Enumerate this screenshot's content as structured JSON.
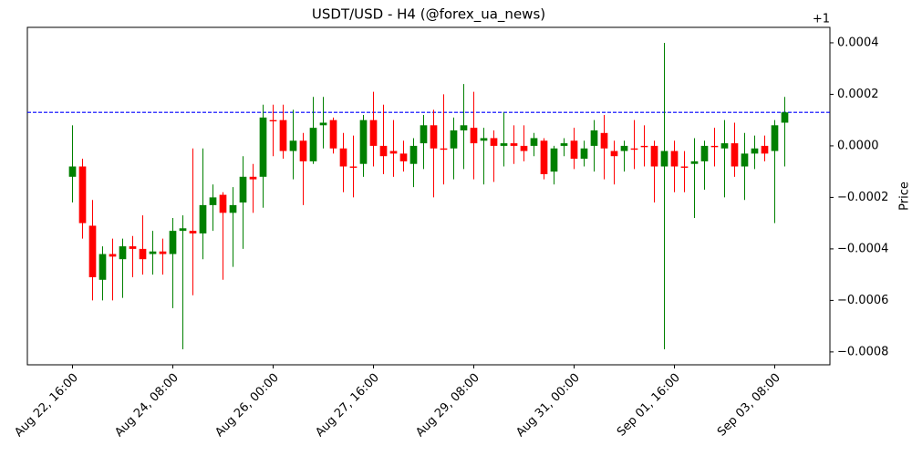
{
  "chart_data": {
    "type": "candlestick",
    "title": "USDT/USD - H4 (@forex_ua_news)",
    "y_label": "Price",
    "y_offset_label": "+1",
    "categories": [
      "Aug 22, 16:00",
      null,
      null,
      null,
      null,
      null,
      null,
      null,
      null,
      null,
      "Aug 24, 08:00",
      null,
      null,
      null,
      null,
      null,
      null,
      null,
      null,
      null,
      "Aug 26, 00:00",
      null,
      null,
      null,
      null,
      null,
      null,
      null,
      null,
      null,
      "Aug 27, 16:00",
      null,
      null,
      null,
      null,
      null,
      null,
      null,
      null,
      null,
      "Aug 29, 08:00",
      null,
      null,
      null,
      null,
      null,
      null,
      null,
      null,
      null,
      "Aug 31, 00:00",
      null,
      null,
      null,
      null,
      null,
      null,
      null,
      null,
      null,
      "Sep 01, 16:00",
      null,
      null,
      null,
      null,
      null,
      null,
      null,
      null,
      null,
      "Sep 03, 08:00",
      null
    ],
    "open": [
      -0.00012,
      -8e-05,
      -0.00031,
      -0.00052,
      -0.00042,
      -0.00044,
      -0.00039,
      -0.0004,
      -0.00042,
      -0.00041,
      -0.00042,
      -0.00033,
      -0.00033,
      -0.00034,
      -0.00023,
      -0.00019,
      -0.00026,
      -0.00022,
      -0.00012,
      -0.00012,
      0.0001,
      0.0001,
      -2e-05,
      2e-05,
      -6e-05,
      8e-05,
      0.0001,
      -1e-05,
      -8e-05,
      -7e-05,
      0.0001,
      0,
      -2e-05,
      -3e-05,
      -7e-05,
      1e-05,
      8e-05,
      -1e-05,
      -1e-05,
      6e-05,
      7e-05,
      2e-05,
      3e-05,
      0,
      1e-05,
      0,
      0,
      2e-05,
      -0.0001,
      0,
      2e-05,
      -5e-05,
      0,
      5e-05,
      -2e-05,
      -2e-05,
      -1e-05,
      0,
      0,
      -8e-05,
      -2e-05,
      -8e-05,
      -7e-05,
      -6e-05,
      0,
      -1e-05,
      1e-05,
      -8e-05,
      -3e-05,
      0,
      -2e-05,
      9e-05
    ],
    "high": [
      8e-05,
      -5e-05,
      -0.00021,
      -0.00039,
      -0.00036,
      -0.00036,
      -0.00035,
      -0.00027,
      -0.00033,
      -0.00036,
      -0.00028,
      -0.00027,
      -1e-05,
      -1e-05,
      -0.00015,
      -0.00018,
      -0.00016,
      -4e-05,
      -7e-05,
      0.00016,
      0.00016,
      0.00016,
      0.00014,
      5e-05,
      0.00019,
      0.00019,
      0.00011,
      5e-05,
      4e-05,
      0.00012,
      0.00021,
      0.00016,
      0.0001,
      2e-05,
      3e-05,
      0.00012,
      0.00014,
      0.0002,
      0.00011,
      0.00024,
      0.00021,
      7e-05,
      6e-05,
      0.00013,
      8e-05,
      8e-05,
      5e-05,
      3e-05,
      0,
      3e-05,
      7e-05,
      2e-05,
      0.0001,
      0.00012,
      2e-05,
      2e-05,
      0.0001,
      8e-05,
      2e-05,
      0.0004,
      2e-05,
      -2e-05,
      3e-05,
      2e-05,
      7e-05,
      0.0001,
      9e-05,
      5e-05,
      4e-05,
      4e-05,
      0.0001,
      0.00019
    ],
    "low": [
      -0.00022,
      -0.00036,
      -0.0006,
      -0.0006,
      -0.0006,
      -0.00059,
      -0.00051,
      -0.0005,
      -0.0005,
      -0.0005,
      -0.00063,
      -0.00079,
      -0.00058,
      -0.00044,
      -0.00033,
      -0.00052,
      -0.00047,
      -0.0004,
      -0.00026,
      -0.00024,
      -4e-05,
      -5e-05,
      -0.00013,
      -0.00023,
      -7e-05,
      -1e-05,
      -3e-05,
      -0.00018,
      -0.0002,
      -0.00012,
      -8e-05,
      -0.00011,
      -0.00012,
      -0.0001,
      -0.00016,
      -9e-05,
      -0.0002,
      -0.00015,
      -0.00013,
      -9e-05,
      -0.00013,
      -0.00015,
      -0.00014,
      -8e-05,
      -7e-05,
      -6e-05,
      -4e-05,
      -0.00013,
      -0.00015,
      -4e-05,
      -9e-05,
      -8e-05,
      -0.0001,
      -0.00013,
      -0.00015,
      -0.0001,
      -9e-05,
      -8e-05,
      -0.00022,
      -0.00079,
      -0.00018,
      -0.00018,
      -0.00028,
      -0.00017,
      -8e-05,
      -0.0002,
      -0.00012,
      -0.00021,
      -9e-05,
      -6e-05,
      -0.0003,
      -8e-05
    ],
    "close": [
      -8e-05,
      -0.0003,
      -0.00051,
      -0.00042,
      -0.00043,
      -0.00039,
      -0.0004,
      -0.00044,
      -0.00041,
      -0.00042,
      -0.00033,
      -0.00032,
      -0.00034,
      -0.00023,
      -0.0002,
      -0.00026,
      -0.00023,
      -0.00012,
      -0.00013,
      0.00011,
      9.5e-05,
      -2e-05,
      2e-05,
      -6e-05,
      7e-05,
      9e-05,
      -1e-05,
      -8e-05,
      -8.5e-05,
      0.0001,
      0,
      -4e-05,
      -3e-05,
      -6e-05,
      0,
      8e-05,
      -1e-05,
      -1.5e-05,
      6e-05,
      8e-05,
      1e-05,
      3e-05,
      0,
      1e-05,
      0,
      -2e-05,
      3e-05,
      -0.00011,
      -1e-05,
      1e-05,
      -5e-05,
      -1e-05,
      6e-05,
      -1e-05,
      -4e-05,
      0,
      -1.5e-05,
      -5e-06,
      -8e-05,
      -2e-05,
      -8e-05,
      -8.5e-05,
      -6e-05,
      0,
      -5e-06,
      1e-05,
      -8e-05,
      -3e-05,
      -1e-05,
      -3e-05,
      8e-05,
      0.00013
    ],
    "up_color": "#008000",
    "down_color": "#ff0000",
    "hline": {
      "value": 0.00013,
      "color": "#0000ff",
      "style": "dashed"
    },
    "ylim": [
      -0.00085,
      0.00046
    ],
    "yticks": [
      {
        "value": -0.0008,
        "label": "−0.0008"
      },
      {
        "value": -0.0006,
        "label": "−0.0006"
      },
      {
        "value": -0.0004,
        "label": "−0.0004"
      },
      {
        "value": -0.0002,
        "label": "−0.0002"
      },
      {
        "value": 0,
        "label": "0.0000"
      },
      {
        "value": 0.0002,
        "label": "0.0002"
      },
      {
        "value": 0.0004,
        "label": "0.0004"
      }
    ],
    "y_axis_side": "right",
    "grid": false
  }
}
